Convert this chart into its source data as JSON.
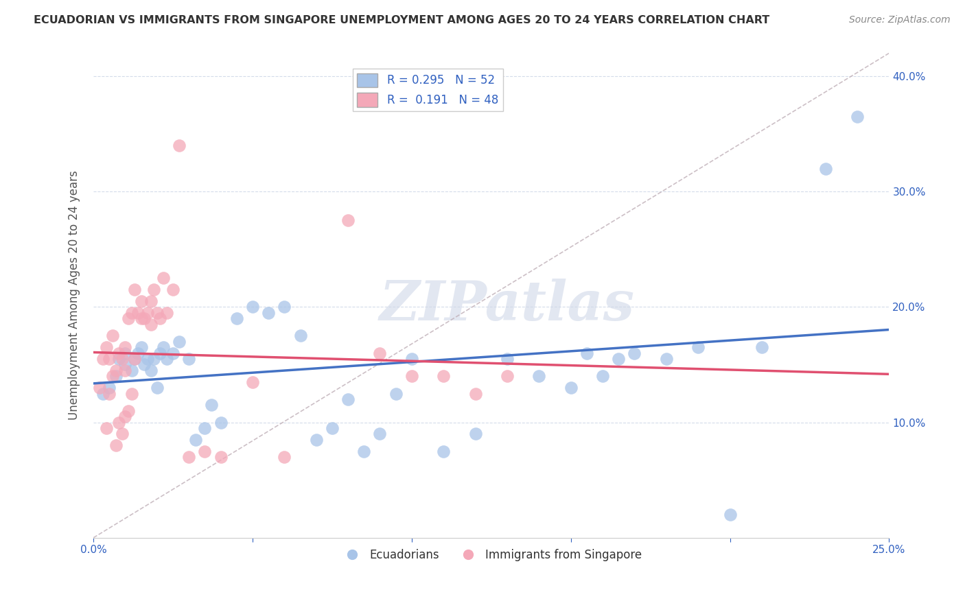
{
  "title": "ECUADORIAN VS IMMIGRANTS FROM SINGAPORE UNEMPLOYMENT AMONG AGES 20 TO 24 YEARS CORRELATION CHART",
  "source": "Source: ZipAtlas.com",
  "ylabel": "Unemployment Among Ages 20 to 24 years",
  "r_ecuadorian": 0.295,
  "n_ecuadorian": 52,
  "r_singapore": 0.191,
  "n_singapore": 48,
  "xmin": 0.0,
  "xmax": 0.25,
  "ymin": 0.0,
  "ymax": 0.42,
  "xticks": [
    0.0,
    0.05,
    0.1,
    0.15,
    0.2,
    0.25
  ],
  "xtick_labels_bottom": [
    "0.0%",
    "",
    "",
    "",
    "",
    "25.0%"
  ],
  "yticks": [
    0.1,
    0.2,
    0.3,
    0.4
  ],
  "ytick_labels": [
    "10.0%",
    "20.0%",
    "30.0%",
    "40.0%"
  ],
  "color_ecuadorian": "#a8c4e8",
  "color_singapore": "#f4a8b8",
  "color_line_ecuadorian": "#4472c4",
  "color_line_singapore": "#e05070",
  "watermark_text": "ZIPatlas",
  "legend_labels": [
    "Ecuadorians",
    "Immigrants from Singapore"
  ],
  "ecuadorian_x": [
    0.003,
    0.005,
    0.007,
    0.008,
    0.01,
    0.01,
    0.012,
    0.013,
    0.014,
    0.015,
    0.016,
    0.017,
    0.018,
    0.019,
    0.02,
    0.021,
    0.022,
    0.023,
    0.025,
    0.027,
    0.03,
    0.032,
    0.035,
    0.037,
    0.04,
    0.045,
    0.05,
    0.055,
    0.06,
    0.065,
    0.07,
    0.075,
    0.08,
    0.085,
    0.09,
    0.095,
    0.1,
    0.11,
    0.12,
    0.13,
    0.14,
    0.15,
    0.155,
    0.16,
    0.165,
    0.17,
    0.18,
    0.19,
    0.2,
    0.21,
    0.23,
    0.24
  ],
  "ecuadorian_y": [
    0.125,
    0.13,
    0.14,
    0.155,
    0.16,
    0.15,
    0.145,
    0.155,
    0.16,
    0.165,
    0.15,
    0.155,
    0.145,
    0.155,
    0.13,
    0.16,
    0.165,
    0.155,
    0.16,
    0.17,
    0.155,
    0.085,
    0.095,
    0.115,
    0.1,
    0.19,
    0.2,
    0.195,
    0.2,
    0.175,
    0.085,
    0.095,
    0.12,
    0.075,
    0.09,
    0.125,
    0.155,
    0.075,
    0.09,
    0.155,
    0.14,
    0.13,
    0.16,
    0.14,
    0.155,
    0.16,
    0.155,
    0.165,
    0.02,
    0.165,
    0.32,
    0.365
  ],
  "singapore_x": [
    0.002,
    0.003,
    0.004,
    0.004,
    0.005,
    0.005,
    0.006,
    0.006,
    0.007,
    0.007,
    0.008,
    0.008,
    0.009,
    0.009,
    0.01,
    0.01,
    0.01,
    0.011,
    0.011,
    0.012,
    0.012,
    0.013,
    0.013,
    0.014,
    0.015,
    0.015,
    0.016,
    0.017,
    0.018,
    0.018,
    0.019,
    0.02,
    0.021,
    0.022,
    0.023,
    0.025,
    0.027,
    0.03,
    0.035,
    0.04,
    0.05,
    0.06,
    0.08,
    0.09,
    0.1,
    0.11,
    0.12,
    0.13
  ],
  "singapore_y": [
    0.13,
    0.155,
    0.095,
    0.165,
    0.125,
    0.155,
    0.14,
    0.175,
    0.08,
    0.145,
    0.1,
    0.16,
    0.09,
    0.155,
    0.105,
    0.145,
    0.165,
    0.11,
    0.19,
    0.125,
    0.195,
    0.155,
    0.215,
    0.195,
    0.19,
    0.205,
    0.19,
    0.195,
    0.185,
    0.205,
    0.215,
    0.195,
    0.19,
    0.225,
    0.195,
    0.215,
    0.34,
    0.07,
    0.075,
    0.07,
    0.135,
    0.07,
    0.275,
    0.16,
    0.14,
    0.14,
    0.125,
    0.14
  ]
}
